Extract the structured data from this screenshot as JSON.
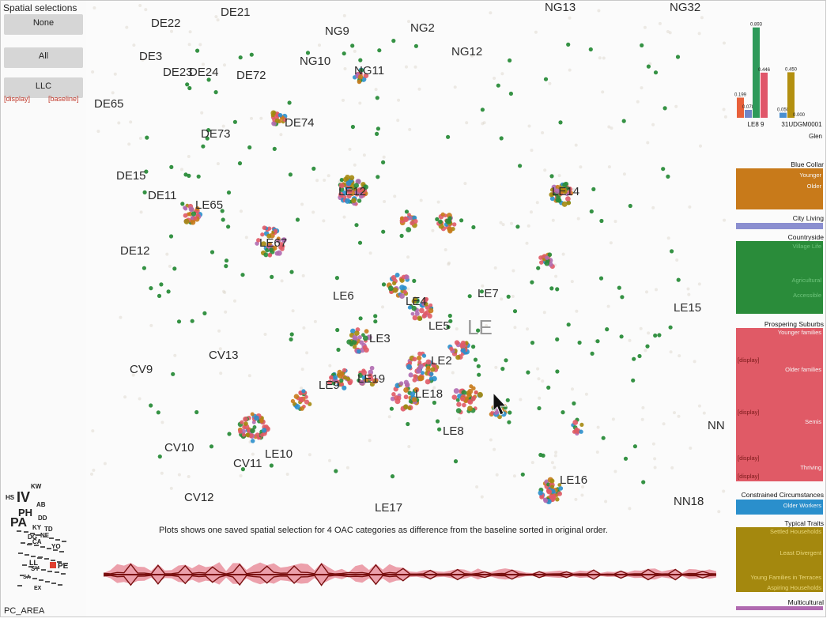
{
  "spatial_selections": {
    "title": "Spatial selections",
    "buttons": [
      "None",
      "All",
      "LLC"
    ],
    "display_link": "[display]",
    "baseline_link": "[baseline]"
  },
  "pc_area_label": "PC_AREA",
  "map_labels": [
    {
      "text": "DE22",
      "size": "big"
    },
    {
      "text": "DE21",
      "size": "big"
    },
    {
      "text": "NG9",
      "size": "big"
    },
    {
      "text": "NG2",
      "size": "big"
    },
    {
      "text": "NG13",
      "size": "big"
    },
    {
      "text": "NG32",
      "size": "big"
    },
    {
      "text": "DE3",
      "size": "big"
    },
    {
      "text": "DE23",
      "size": "big"
    },
    {
      "text": "DE24",
      "size": "big"
    },
    {
      "text": "DE72",
      "size": "big"
    },
    {
      "text": "NG10",
      "size": "big"
    },
    {
      "text": "NG11",
      "size": "big"
    },
    {
      "text": "NG12",
      "size": "big"
    },
    {
      "text": "DE65",
      "size": "big"
    },
    {
      "text": "DE74",
      "size": "big"
    },
    {
      "text": "DE73",
      "size": "big"
    },
    {
      "text": "DE15",
      "size": "big"
    },
    {
      "text": "DE11",
      "size": "big"
    },
    {
      "text": "LE65",
      "size": "big"
    },
    {
      "text": "LE12",
      "size": "big"
    },
    {
      "text": "LE14",
      "size": "big"
    },
    {
      "text": "DE12",
      "size": "big"
    },
    {
      "text": "LE67",
      "size": "big"
    },
    {
      "text": "LE6",
      "size": "big"
    },
    {
      "text": "LE4",
      "size": "big"
    },
    {
      "text": "LE7",
      "size": "big"
    },
    {
      "text": "LE15",
      "size": "big"
    },
    {
      "text": "LE5",
      "size": "big"
    },
    {
      "text": "LE",
      "size": "huge"
    },
    {
      "text": "LE3",
      "size": "big"
    },
    {
      "text": "CV9",
      "size": "big"
    },
    {
      "text": "CV13",
      "size": "big"
    },
    {
      "text": "LE2",
      "size": "big"
    },
    {
      "text": "LE9",
      "size": "big"
    },
    {
      "text": "LE18",
      "size": "big"
    },
    {
      "text": "NN",
      "size": "big"
    },
    {
      "text": "LE8",
      "size": "big"
    },
    {
      "text": "CV10",
      "size": "big"
    },
    {
      "text": "LE10",
      "size": "big"
    },
    {
      "text": "CV11",
      "size": "big"
    },
    {
      "text": "LE16",
      "size": "big"
    },
    {
      "text": "CV12",
      "size": "big"
    },
    {
      "text": "NN18",
      "size": "big"
    },
    {
      "text": "LE17",
      "size": "big"
    },
    {
      "text": "LE19",
      "size": "big"
    }
  ],
  "caption": "Plots shows one saved spatial selection for 4 OAC categories as difference from the baseline sorted in original order.",
  "bar_chart": {
    "groups": [
      "LE8 9",
      "31UDGM0001"
    ],
    "footer": "Glen",
    "values": [
      {
        "group": 0,
        "value": 0.199,
        "label": "0.199",
        "color": "#e8603a"
      },
      {
        "group": 0,
        "value": 0.078,
        "label": "0.078",
        "color": "#6f86c8"
      },
      {
        "group": 0,
        "value": 0.893,
        "label": "0.893",
        "color": "#2e9a5a"
      },
      {
        "group": 0,
        "value": 0.446,
        "label": "0.446",
        "color": "#e0566a"
      },
      {
        "group": 1,
        "value": 0.05,
        "label": "0.050",
        "color": "#4a8fd0"
      },
      {
        "group": 1,
        "value": 0.45,
        "label": "0.450",
        "color": "#b39010"
      },
      {
        "group": 1,
        "value": 0.0,
        "label": "0.000",
        "color": "#c27ab0"
      }
    ]
  },
  "categories": {
    "blue_collar": {
      "title": "Blue Collar",
      "subs": [
        "Younger",
        "Older"
      ],
      "color": "#c87a1a"
    },
    "city_living": {
      "title": "City Living",
      "color": "#8b8fd0"
    },
    "countryside": {
      "title": "Countryside",
      "subs": [
        "Village Life",
        "Agricultural",
        "Accessible"
      ],
      "color": "#2a8c3a"
    },
    "prospering": {
      "title": "Prospering Suburbs",
      "subs": [
        "Younger families",
        "Older families",
        "Semis",
        "Thriving"
      ],
      "color": "#e05a66",
      "display": "[display]"
    },
    "constrained": {
      "title": "Constrained Circumstances",
      "subs": [
        "Older Workers"
      ],
      "color": "#2a8fcc"
    },
    "typical": {
      "title": "Typical Traits",
      "subs": [
        "Settled Households",
        "Least Divergent",
        "Young Families in Terraces",
        "Aspiring Households"
      ],
      "color": "#a4880e"
    },
    "multicultural": {
      "title": "Multicultural",
      "color": "#b06ab0"
    }
  },
  "mini_map_labels": [
    "KW",
    "HS",
    "IV",
    "AB",
    "PH",
    "PA",
    "DD",
    "KY",
    "TD",
    "NE",
    "DG",
    "CA",
    "YO",
    "LL",
    "SY",
    "PE",
    "SA",
    "EX"
  ],
  "colors": {
    "prospering": "#e05a66",
    "countryside": "#2a8c3a",
    "blue_collar": "#c87a1a",
    "city_living": "#8b8fd0",
    "constrained": "#2a8fcc",
    "typical": "#a4880e",
    "multicultural": "#b06ab0",
    "strip_line": "#7a1010",
    "strip_fill": "#e0566a"
  }
}
